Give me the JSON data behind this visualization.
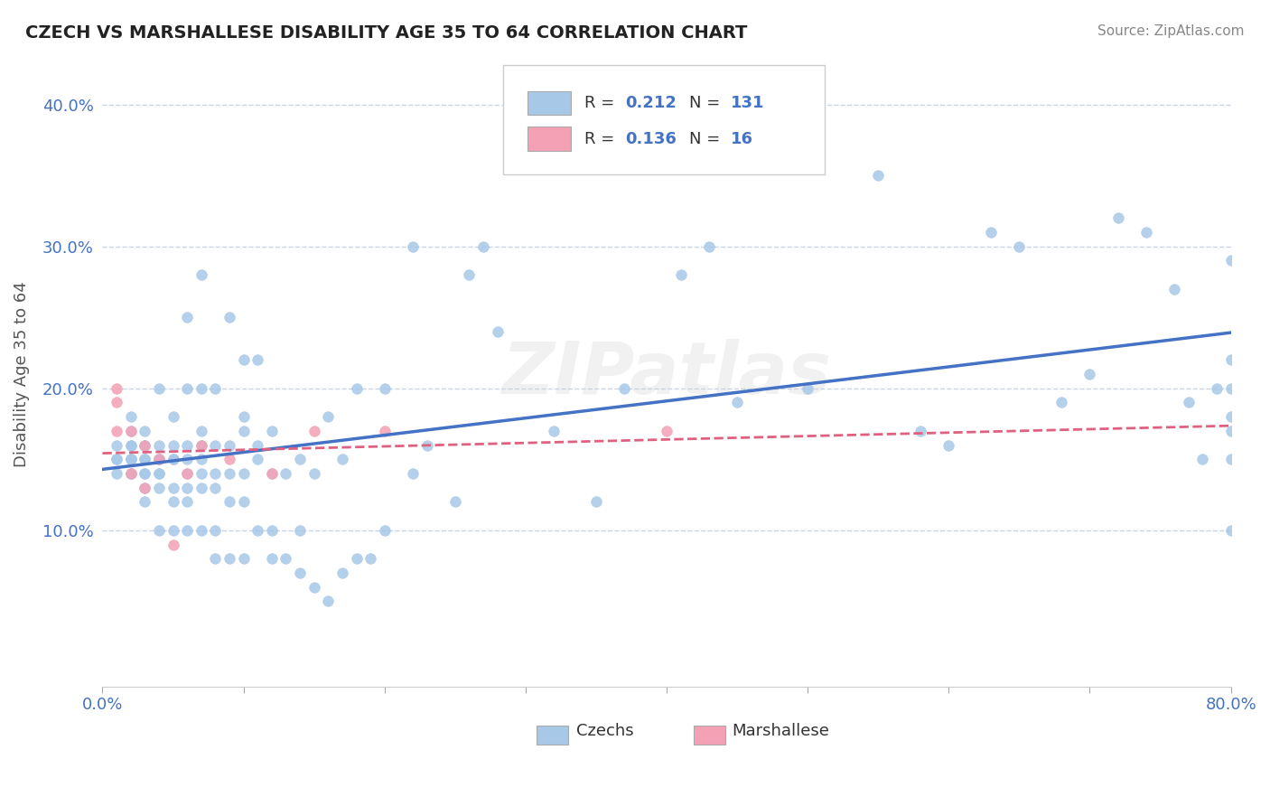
{
  "title": "CZECH VS MARSHALLESE DISABILITY AGE 35 TO 64 CORRELATION CHART",
  "source": "Source: ZipAtlas.com",
  "ylabel": "Disability Age 35 to 64",
  "xlim": [
    0.0,
    0.8
  ],
  "ylim": [
    -0.01,
    0.43
  ],
  "yticks": [
    0.1,
    0.2,
    0.3,
    0.4
  ],
  "ytick_labels": [
    "10.0%",
    "20.0%",
    "30.0%",
    "40.0%"
  ],
  "czech_color": "#a8c8e8",
  "marshallese_color": "#f4a0b5",
  "czech_line_color": "#4472c4",
  "marshallese_line_color": "#e06080",
  "czech_R": 0.212,
  "czech_N": 131,
  "marshallese_R": 0.136,
  "marshallese_N": 16,
  "background_color": "#ffffff",
  "grid_color": "#c8d4e8",
  "czech_x": [
    0.01,
    0.01,
    0.01,
    0.01,
    0.02,
    0.02,
    0.02,
    0.02,
    0.02,
    0.02,
    0.02,
    0.02,
    0.02,
    0.03,
    0.03,
    0.03,
    0.03,
    0.03,
    0.03,
    0.03,
    0.03,
    0.03,
    0.04,
    0.04,
    0.04,
    0.04,
    0.04,
    0.04,
    0.04,
    0.04,
    0.05,
    0.05,
    0.05,
    0.05,
    0.05,
    0.05,
    0.05,
    0.06,
    0.06,
    0.06,
    0.06,
    0.06,
    0.06,
    0.06,
    0.06,
    0.07,
    0.07,
    0.07,
    0.07,
    0.07,
    0.07,
    0.07,
    0.07,
    0.08,
    0.08,
    0.08,
    0.08,
    0.08,
    0.08,
    0.09,
    0.09,
    0.09,
    0.09,
    0.09,
    0.1,
    0.1,
    0.1,
    0.1,
    0.1,
    0.1,
    0.11,
    0.11,
    0.11,
    0.11,
    0.12,
    0.12,
    0.12,
    0.12,
    0.13,
    0.13,
    0.14,
    0.14,
    0.14,
    0.15,
    0.15,
    0.16,
    0.16,
    0.17,
    0.17,
    0.18,
    0.18,
    0.19,
    0.2,
    0.2,
    0.22,
    0.22,
    0.23,
    0.25,
    0.26,
    0.27,
    0.28,
    0.29,
    0.32,
    0.33,
    0.35,
    0.37,
    0.4,
    0.41,
    0.43,
    0.45,
    0.5,
    0.55,
    0.58,
    0.6,
    0.63,
    0.65,
    0.68,
    0.7,
    0.72,
    0.74,
    0.76,
    0.77,
    0.78,
    0.79,
    0.8,
    0.8,
    0.8,
    0.8,
    0.8,
    0.8,
    0.8
  ],
  "czech_y": [
    0.14,
    0.15,
    0.15,
    0.16,
    0.14,
    0.14,
    0.15,
    0.15,
    0.15,
    0.16,
    0.16,
    0.17,
    0.18,
    0.12,
    0.13,
    0.14,
    0.14,
    0.15,
    0.15,
    0.16,
    0.16,
    0.17,
    0.1,
    0.13,
    0.14,
    0.14,
    0.15,
    0.15,
    0.16,
    0.2,
    0.1,
    0.12,
    0.13,
    0.15,
    0.15,
    0.16,
    0.18,
    0.1,
    0.12,
    0.13,
    0.14,
    0.15,
    0.16,
    0.2,
    0.25,
    0.1,
    0.13,
    0.14,
    0.15,
    0.16,
    0.17,
    0.2,
    0.28,
    0.08,
    0.1,
    0.13,
    0.14,
    0.16,
    0.2,
    0.08,
    0.12,
    0.14,
    0.16,
    0.25,
    0.08,
    0.12,
    0.14,
    0.17,
    0.18,
    0.22,
    0.1,
    0.15,
    0.16,
    0.22,
    0.08,
    0.1,
    0.14,
    0.17,
    0.08,
    0.14,
    0.07,
    0.1,
    0.15,
    0.06,
    0.14,
    0.05,
    0.18,
    0.07,
    0.15,
    0.08,
    0.2,
    0.08,
    0.1,
    0.2,
    0.14,
    0.3,
    0.16,
    0.12,
    0.28,
    0.3,
    0.24,
    0.36,
    0.17,
    0.36,
    0.12,
    0.2,
    0.36,
    0.28,
    0.3,
    0.19,
    0.2,
    0.35,
    0.17,
    0.16,
    0.31,
    0.3,
    0.19,
    0.21,
    0.32,
    0.31,
    0.27,
    0.19,
    0.15,
    0.2,
    0.18,
    0.2,
    0.22,
    0.29,
    0.1,
    0.15,
    0.17
  ],
  "marshallese_x": [
    0.01,
    0.01,
    0.01,
    0.02,
    0.02,
    0.03,
    0.03,
    0.04,
    0.05,
    0.06,
    0.07,
    0.09,
    0.12,
    0.15,
    0.2,
    0.4
  ],
  "marshallese_y": [
    0.17,
    0.19,
    0.2,
    0.14,
    0.17,
    0.13,
    0.16,
    0.15,
    0.09,
    0.14,
    0.16,
    0.15,
    0.14,
    0.17,
    0.17,
    0.17
  ]
}
